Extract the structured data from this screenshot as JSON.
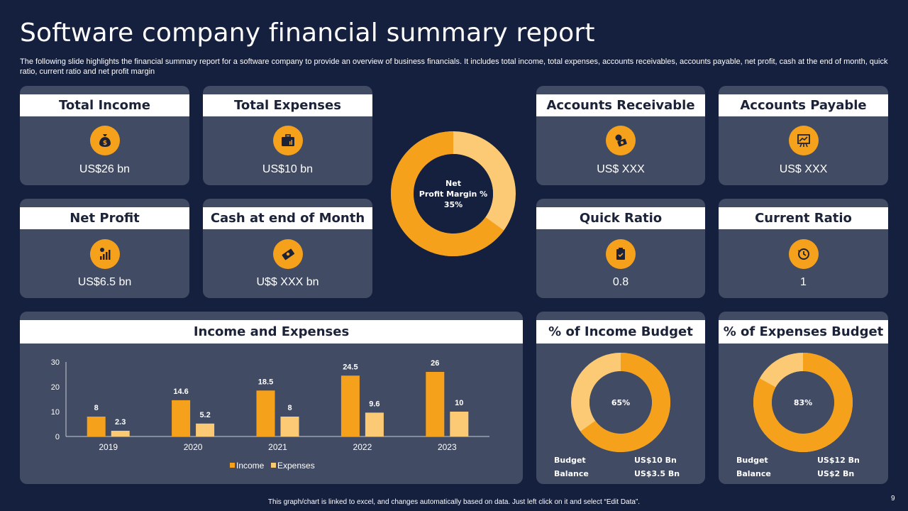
{
  "title": "Software company financial summary report",
  "subtitle": "The following slide highlights the financial summary report for a software company to provide an overview of business financials. It includes total income, total expenses, accounts receivables, accounts payable, net profit, cash at the end of month, quick ratio, current ratio and net profit margin",
  "cards": {
    "total_income": {
      "label": "Total Income",
      "value": "US$26 bn"
    },
    "total_expenses": {
      "label": "Total Expenses",
      "value": "US$10 bn"
    },
    "accounts_receivable": {
      "label": "Accounts Receivable",
      "value": "US$ XXX"
    },
    "accounts_payable": {
      "label": "Accounts Payable",
      "value": "US$ XXX"
    },
    "net_profit": {
      "label": "Net Profit",
      "value": "US$6.5 bn"
    },
    "cash_end_month": {
      "label": "Cash at end of Month",
      "value": "U$$ XXX bn"
    },
    "quick_ratio": {
      "label": "Quick Ratio",
      "value": "0.8"
    },
    "current_ratio": {
      "label": "Current Ratio",
      "value": "1"
    }
  },
  "net_margin": {
    "line1": "Net",
    "line2": "Profit Margin %",
    "line3": "35%",
    "percent": 35
  },
  "income_budget": {
    "label": "% of Income Budget",
    "center": "65%",
    "percent": 65,
    "budget_label": "Budget",
    "budget_value": "US$10 Bn",
    "balance_label": "Balance",
    "balance_value": "US$3.5 Bn"
  },
  "expenses_budget": {
    "label": "% of Expenses Budget",
    "center": "83%",
    "percent": 83,
    "budget_label": "Budget",
    "budget_value": "US$12 Bn",
    "balance_label": "Balance",
    "balance_value": "US$2 Bn"
  },
  "colors": {
    "orange": "#f6a11c",
    "light_orange": "#fcca74",
    "panel": "#414b63",
    "background": "#15203f"
  },
  "chart_data": {
    "type": "bar",
    "title": "Income and Expenses",
    "categories": [
      "2019",
      "2020",
      "2021",
      "2022",
      "2023"
    ],
    "series": [
      {
        "name": "Income",
        "values": [
          8,
          14.6,
          18.5,
          24.5,
          26
        ],
        "labels": [
          "8",
          "14.6",
          "18.5",
          "24.5",
          "26"
        ]
      },
      {
        "name": "Expenses",
        "values": [
          2.3,
          5.2,
          8,
          9.6,
          10
        ],
        "labels": [
          "2.3",
          "5.2",
          "8",
          "9.6",
          "10"
        ]
      }
    ],
    "yticks": [
      "0",
      "10",
      "20",
      "30"
    ],
    "ylim": [
      0,
      30
    ],
    "legend": "bottom",
    "grid": false
  },
  "footer": "This graph/chart is linked to excel, and changes automatically based on data. Just left click on it and select “Edit Data”.",
  "page_number": "9"
}
